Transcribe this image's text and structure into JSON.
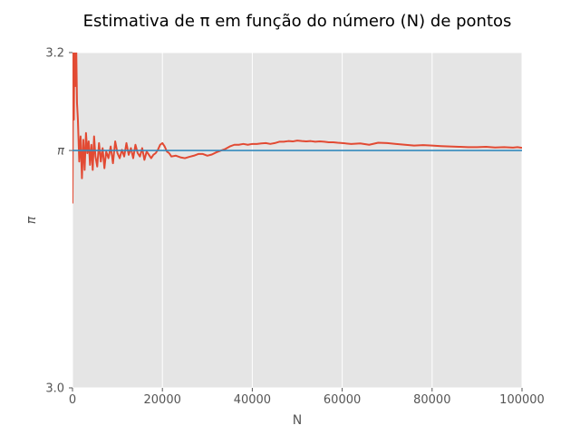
{
  "chart_data": {
    "type": "line",
    "title": "Estimativa de π em função do número (N) de pontos",
    "xlabel": "N",
    "ylabel": "π",
    "xlim": [
      0,
      100000
    ],
    "ylim": [
      3.0,
      3.2
    ],
    "x_ticks": [
      {
        "value": 0,
        "label": "0"
      },
      {
        "value": 20000,
        "label": "20000"
      },
      {
        "value": 40000,
        "label": "40000"
      },
      {
        "value": 60000,
        "label": "60000"
      },
      {
        "value": 80000,
        "label": "80000"
      },
      {
        "value": 100000,
        "label": "100000"
      }
    ],
    "y_ticks": [
      {
        "value": 3.0,
        "label": "3.0"
      },
      {
        "value": 3.14159,
        "label": "π"
      },
      {
        "value": 3.2,
        "label": "3.2"
      }
    ],
    "grid": true,
    "colors": {
      "background": "#E5E5E5",
      "grid": "#FFFFFF",
      "estimate": "#E24A33",
      "reference": "#348ABD"
    },
    "series": [
      {
        "role": "estimate",
        "x": [
          0,
          150,
          300,
          450,
          600,
          800,
          1000,
          1200,
          1500,
          1800,
          2100,
          2400,
          2700,
          3000,
          3300,
          3600,
          3900,
          4200,
          4500,
          4800,
          5100,
          5500,
          5900,
          6300,
          6700,
          7100,
          7500,
          8000,
          8500,
          9000,
          9500,
          10000,
          10500,
          11000,
          11500,
          12000,
          12500,
          13000,
          13500,
          14000,
          14500,
          15000,
          15500,
          16000,
          16500,
          17000,
          17500,
          18000,
          18500,
          19000,
          19500,
          20000,
          20500,
          21000,
          21500,
          22000,
          23000,
          24000,
          25000,
          26000,
          27000,
          28000,
          29000,
          30000,
          31000,
          32000,
          33000,
          34000,
          35000,
          36000,
          37000,
          38000,
          39000,
          40000,
          41000,
          42000,
          43000,
          44000,
          45000,
          46000,
          47000,
          48000,
          49000,
          50000,
          51000,
          52000,
          53000,
          54000,
          55000,
          56000,
          57000,
          58000,
          59000,
          60000,
          62000,
          64000,
          66000,
          68000,
          70000,
          72000,
          74000,
          76000,
          78000,
          80000,
          82000,
          84000,
          86000,
          88000,
          90000,
          92000,
          94000,
          96000,
          98000,
          99000,
          100000
        ],
        "y": [
          3.11,
          3.2,
          3.16,
          3.22,
          3.18,
          3.21,
          3.17,
          3.16,
          3.135,
          3.15,
          3.125,
          3.148,
          3.13,
          3.152,
          3.14,
          3.147,
          3.133,
          3.145,
          3.13,
          3.15,
          3.138,
          3.132,
          3.146,
          3.135,
          3.143,
          3.131,
          3.141,
          3.137,
          3.144,
          3.134,
          3.147,
          3.14,
          3.137,
          3.142,
          3.138,
          3.146,
          3.139,
          3.143,
          3.137,
          3.145,
          3.14,
          3.138,
          3.143,
          3.136,
          3.141,
          3.139,
          3.137,
          3.139,
          3.14,
          3.142,
          3.145,
          3.146,
          3.144,
          3.141,
          3.14,
          3.138,
          3.1385,
          3.1375,
          3.137,
          3.1378,
          3.1385,
          3.1395,
          3.1395,
          3.1385,
          3.1392,
          3.1405,
          3.1415,
          3.1425,
          3.144,
          3.145,
          3.145,
          3.1455,
          3.145,
          3.1455,
          3.1455,
          3.1458,
          3.146,
          3.1455,
          3.146,
          3.1468,
          3.1468,
          3.1472,
          3.147,
          3.1475,
          3.1472,
          3.147,
          3.1472,
          3.1468,
          3.147,
          3.1468,
          3.1465,
          3.1465,
          3.1462,
          3.146,
          3.1455,
          3.1458,
          3.145,
          3.1462,
          3.146,
          3.1455,
          3.145,
          3.1445,
          3.1448,
          3.1445,
          3.1442,
          3.144,
          3.1438,
          3.1436,
          3.1436,
          3.1438,
          3.1434,
          3.1436,
          3.1433,
          3.1436,
          3.1432
        ]
      },
      {
        "role": "reference",
        "x": [
          0,
          100000
        ],
        "y": [
          3.14159,
          3.14159
        ]
      }
    ]
  }
}
